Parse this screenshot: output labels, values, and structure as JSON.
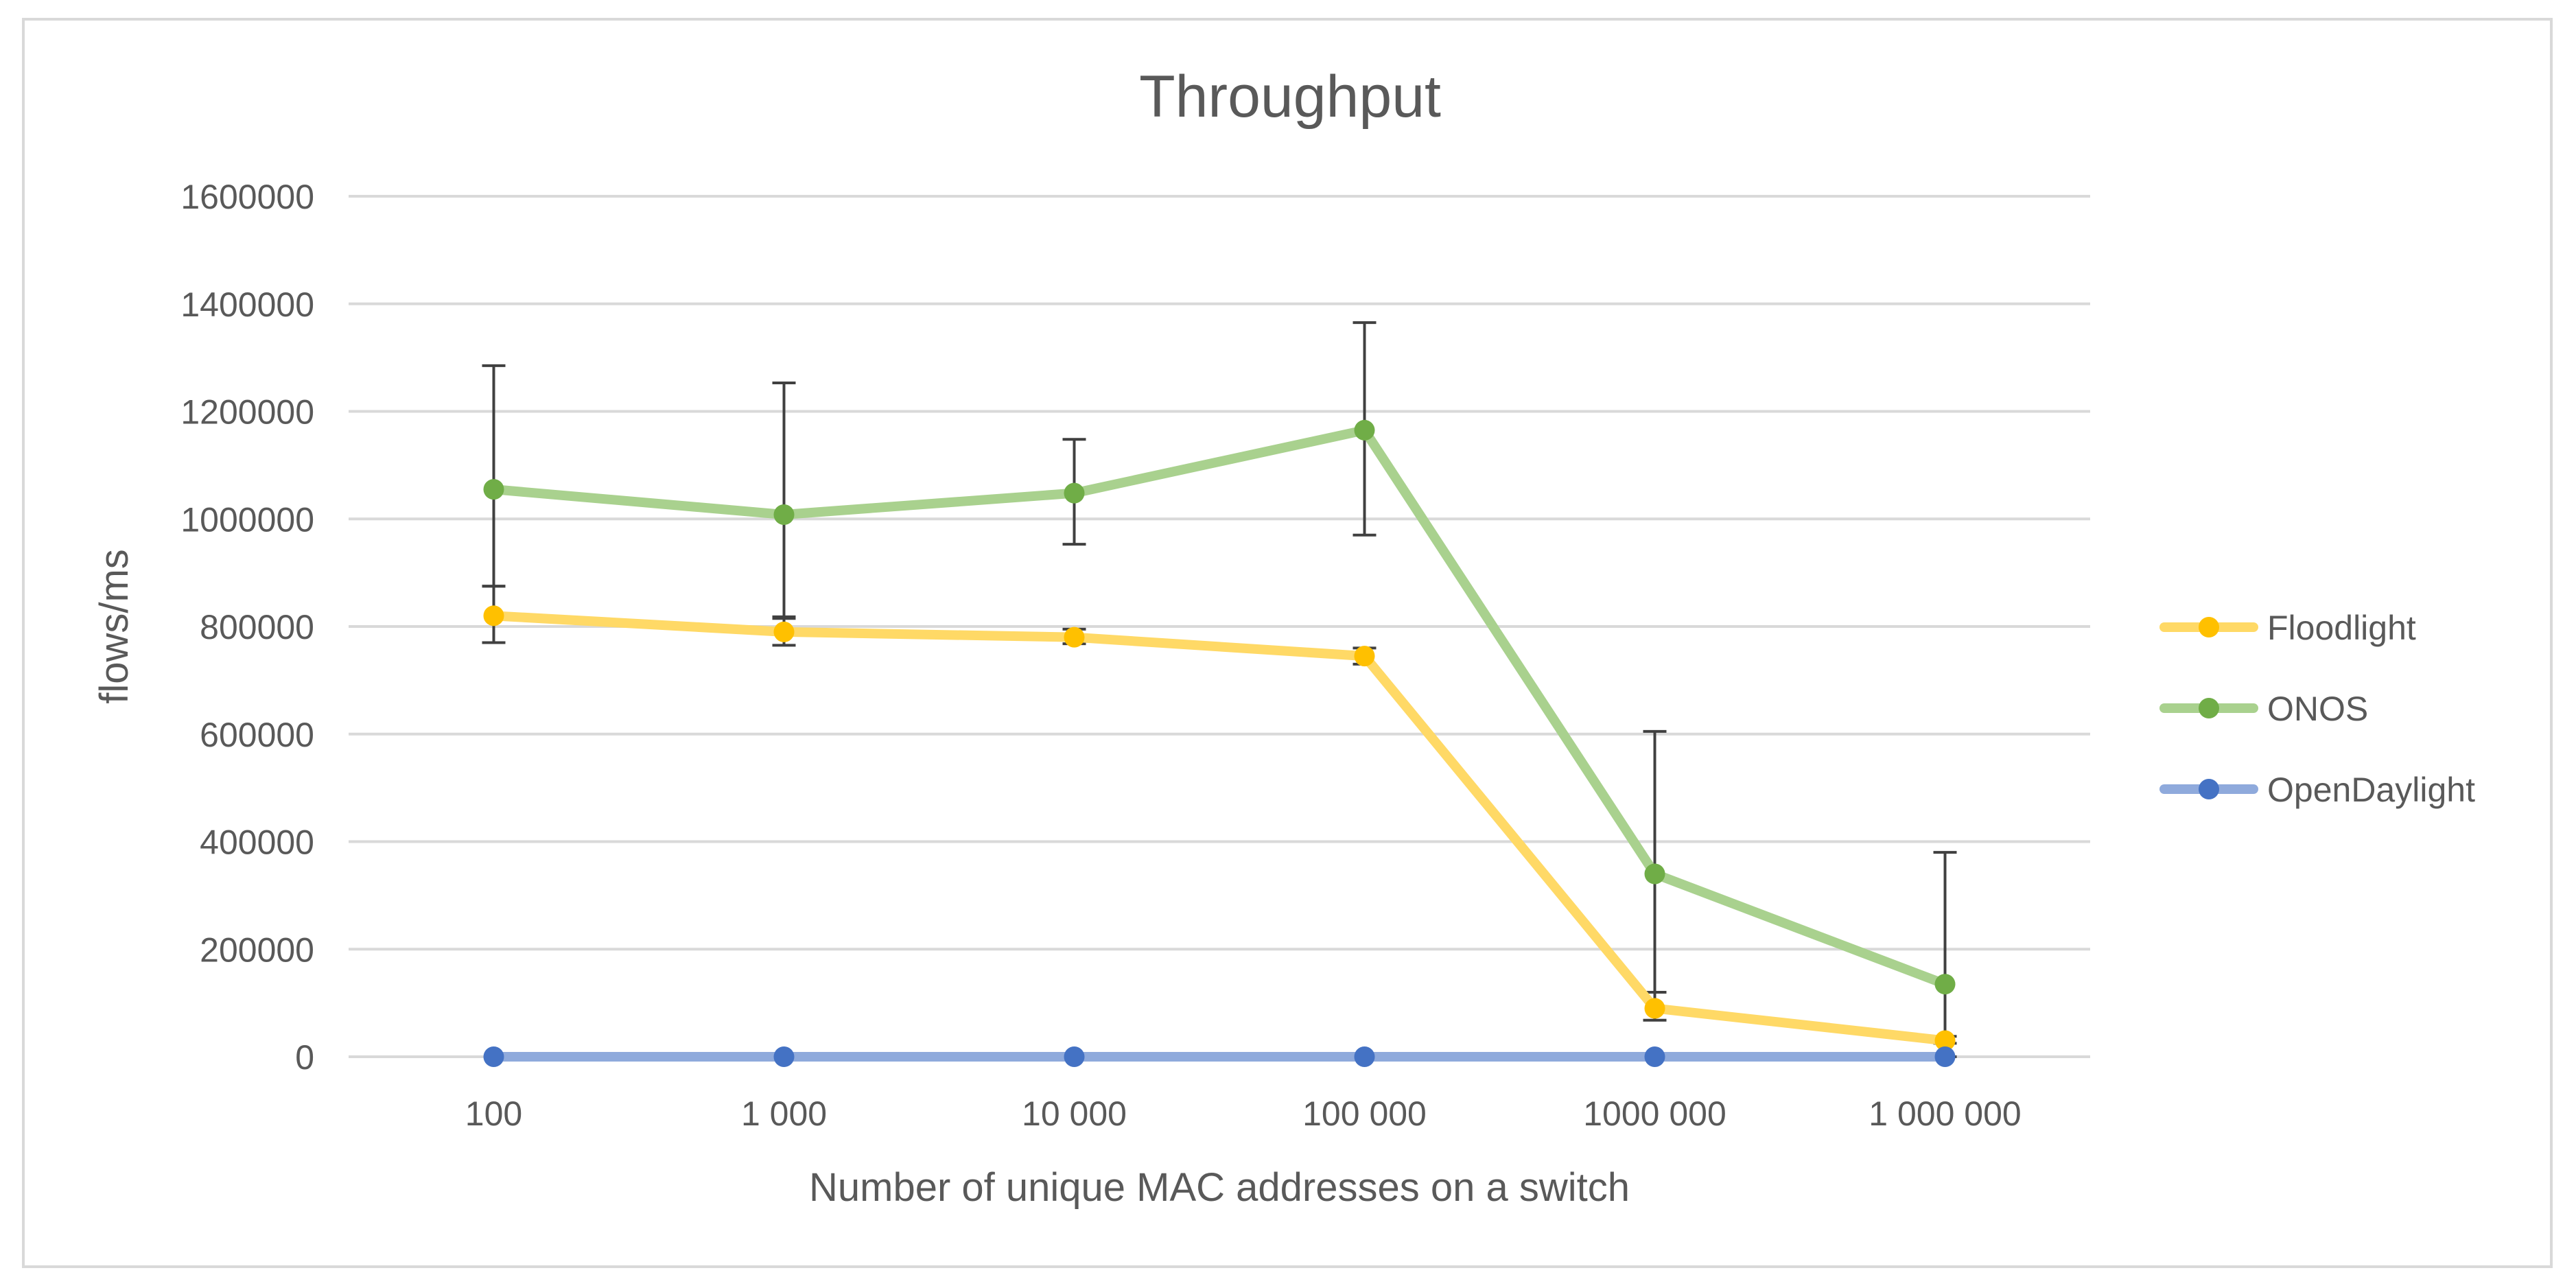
{
  "chart_data": {
    "type": "line",
    "title": "Throughput",
    "xlabel": "Number of unique MAC addresses on a switch",
    "ylabel": "flows/ms",
    "categories": [
      "100",
      "1 000",
      "10 000",
      "100 000",
      "1000 000",
      "1 000 000"
    ],
    "ylim": [
      0,
      1600000
    ],
    "yticks": [
      0,
      200000,
      400000,
      600000,
      800000,
      1000000,
      1200000,
      1400000,
      1600000
    ],
    "ytick_labels": [
      "0",
      "200000",
      "400000",
      "600000",
      "800000",
      "1000000",
      "1200000",
      "1400000",
      "1600000"
    ],
    "grid": true,
    "legend_position": "right",
    "series": [
      {
        "name": "Floodlight",
        "color": "#FFC000",
        "line_color": "#FFD966",
        "values": [
          820000,
          790000,
          780000,
          745000,
          90000,
          30000
        ],
        "error_low": [
          50000,
          25000,
          12000,
          15000,
          22000,
          5000
        ],
        "error_high": [
          55000,
          25000,
          15000,
          15000,
          30000,
          8000
        ]
      },
      {
        "name": "ONOS",
        "color": "#70AD47",
        "line_color": "#A9D18E",
        "values": [
          1055000,
          1008000,
          1048000,
          1165000,
          340000,
          135000
        ],
        "error_low": [
          180000,
          190000,
          95000,
          195000,
          220000,
          135000
        ],
        "error_high": [
          230000,
          245000,
          100000,
          200000,
          265000,
          245000
        ]
      },
      {
        "name": "OpenDaylight",
        "color": "#4472C4",
        "line_color": "#8FAADC",
        "values": [
          0,
          0,
          0,
          0,
          0,
          0
        ]
      }
    ]
  }
}
